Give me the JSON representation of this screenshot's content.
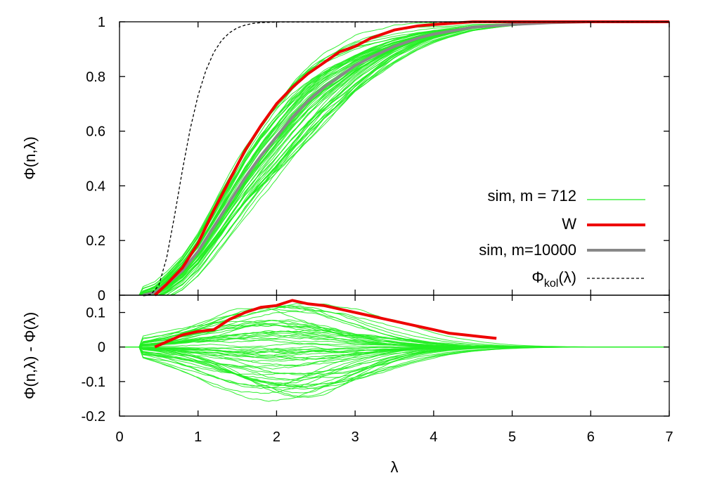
{
  "chart_data": [
    {
      "type": "line",
      "ylabel": "Φ(n,λ)",
      "xlim": [
        0,
        7
      ],
      "ylim": [
        0,
        1
      ],
      "yticks": [
        "0",
        "0.2",
        "0.4",
        "0.6",
        "0.8",
        "1"
      ],
      "grid": false,
      "legend_position": "bottom-right",
      "legend": [
        {
          "label": "sim, m = 712",
          "color": "#22ee22"
        },
        {
          "label": "W",
          "color": "#ee0000"
        },
        {
          "label": "sim, m=10000",
          "color": "#888888"
        },
        {
          "label_main": "Φ",
          "label_sub": "kol",
          "label_tail": "(λ)",
          "color": "#000000"
        }
      ],
      "series": [
        {
          "key": "sim712",
          "color": "#22ee22",
          "ensemble_count": 60,
          "style": "thin-solid"
        },
        {
          "key": "W",
          "color": "#ee0000",
          "x": [
            0.45,
            0.6,
            0.8,
            1.0,
            1.2,
            1.4,
            1.6,
            1.8,
            2.0,
            2.2,
            2.4,
            2.6,
            2.8,
            3.0,
            3.2,
            3.5,
            3.8,
            4.0,
            4.5,
            5.0,
            6.0,
            7.0
          ],
          "y": [
            0.0,
            0.04,
            0.1,
            0.19,
            0.31,
            0.42,
            0.53,
            0.62,
            0.7,
            0.76,
            0.81,
            0.85,
            0.89,
            0.91,
            0.94,
            0.97,
            0.985,
            0.99,
            1.0,
            1.0,
            1.0,
            1.0
          ]
        },
        {
          "key": "sim10000",
          "color": "#888888",
          "x": [
            0.3,
            0.45,
            0.6,
            0.8,
            1.0,
            1.2,
            1.4,
            1.6,
            1.8,
            2.0,
            2.2,
            2.4,
            2.6,
            2.8,
            3.0,
            3.2,
            3.5,
            3.8,
            4.0,
            4.5,
            5.0,
            5.5,
            6.0,
            7.0
          ],
          "y": [
            0.0,
            0.01,
            0.04,
            0.09,
            0.16,
            0.25,
            0.34,
            0.43,
            0.51,
            0.58,
            0.65,
            0.71,
            0.76,
            0.8,
            0.84,
            0.87,
            0.91,
            0.94,
            0.955,
            0.98,
            0.99,
            0.997,
            1.0,
            1.0
          ]
        },
        {
          "key": "kol",
          "color": "#000000",
          "x": [
            0.3,
            0.4,
            0.5,
            0.6,
            0.7,
            0.8,
            0.9,
            1.0,
            1.1,
            1.2,
            1.3,
            1.4,
            1.5,
            1.6,
            1.7,
            1.8,
            1.9,
            2.0,
            7.0
          ],
          "y": [
            0.0,
            0.003,
            0.036,
            0.136,
            0.289,
            0.456,
            0.607,
            0.73,
            0.822,
            0.888,
            0.932,
            0.96,
            0.978,
            0.988,
            0.994,
            0.997,
            0.998,
            0.999,
            1.0
          ]
        }
      ]
    },
    {
      "type": "line",
      "xlabel": "λ",
      "ylabel": "Φ(n,λ) - Φ(λ)",
      "xlim": [
        0,
        7
      ],
      "ylim": [
        -0.2,
        0.15
      ],
      "xticks": [
        "0",
        "1",
        "2",
        "3",
        "4",
        "5",
        "6",
        "7"
      ],
      "yticks": [
        "0.1",
        "0",
        "-0.1",
        "-0.2"
      ],
      "grid": false,
      "series": [
        {
          "key": "diff712",
          "color": "#22ee22",
          "ensemble_count": 60,
          "style": "thin-solid"
        },
        {
          "key": "Wdiff",
          "color": "#ee0000",
          "x": [
            0.45,
            0.6,
            0.8,
            1.0,
            1.2,
            1.4,
            1.6,
            1.8,
            2.0,
            2.2,
            2.4,
            2.6,
            2.8,
            3.0,
            3.2,
            3.4,
            3.6,
            3.8,
            4.0,
            4.2,
            4.4,
            4.6,
            4.8
          ],
          "y": [
            0.0,
            0.015,
            0.035,
            0.045,
            0.05,
            0.08,
            0.1,
            0.115,
            0.12,
            0.135,
            0.125,
            0.12,
            0.11,
            0.1,
            0.09,
            0.08,
            0.07,
            0.06,
            0.05,
            0.04,
            0.035,
            0.03,
            0.025
          ]
        }
      ]
    }
  ]
}
